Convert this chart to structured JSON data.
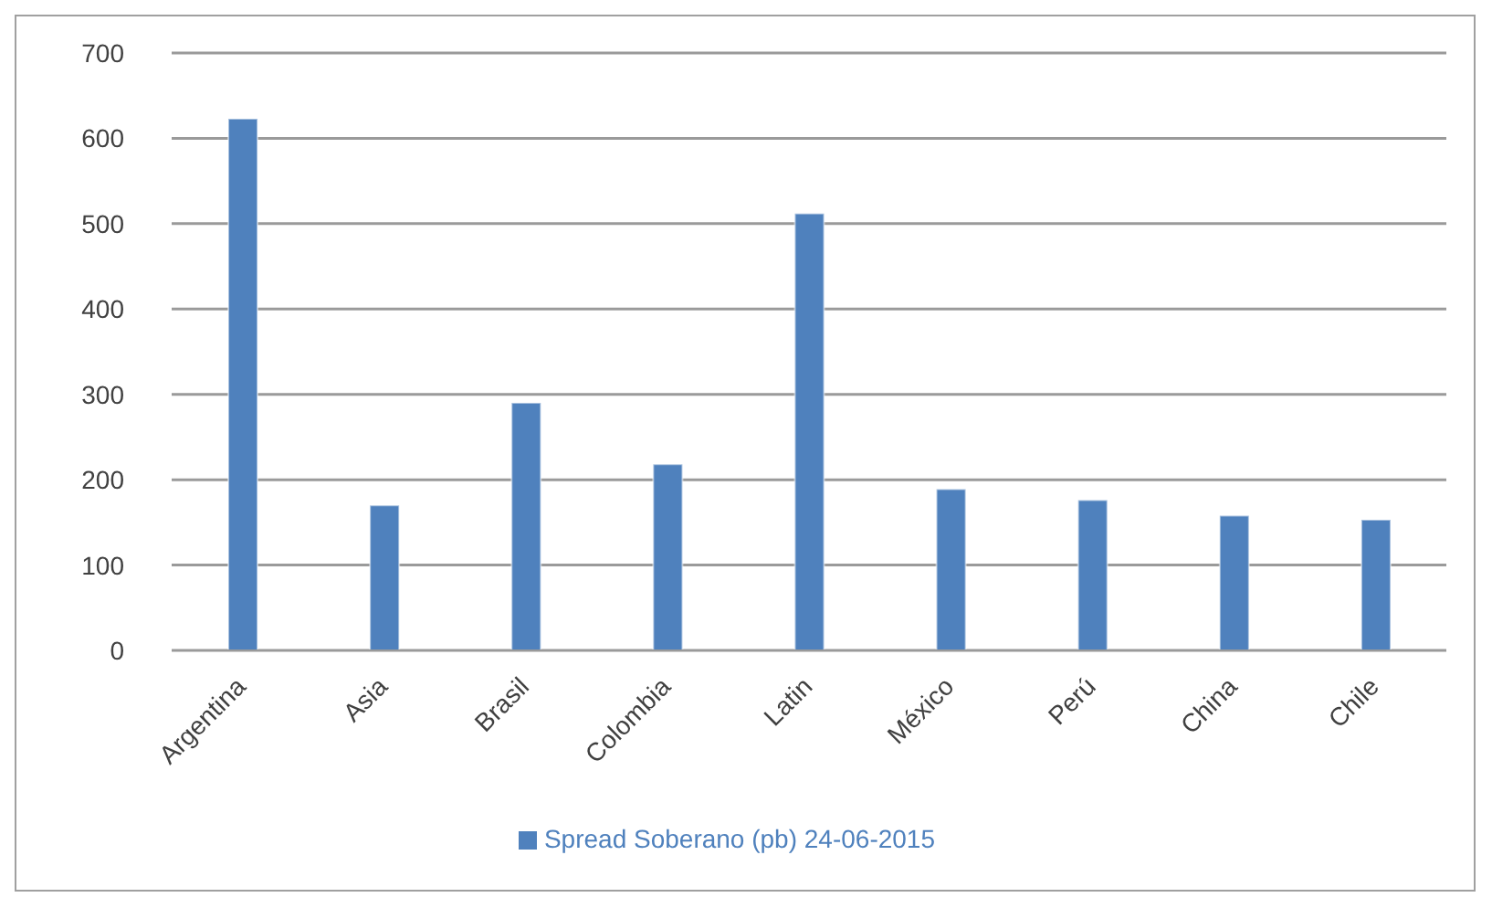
{
  "chart_data": {
    "type": "bar",
    "categories": [
      "Argentina",
      "Asia",
      "Brasil",
      "Colombia",
      "Latin",
      "México",
      "Perú",
      "China",
      "Chile"
    ],
    "series": [
      {
        "name": "Spread Soberano (pb) 24-06-2015",
        "color": "#4f81bd",
        "values": [
          623,
          170,
          290,
          218,
          512,
          189,
          176,
          158,
          153
        ]
      }
    ],
    "ylim": [
      0,
      700
    ],
    "yticks": [
      0,
      100,
      200,
      300,
      400,
      500,
      600,
      700
    ],
    "grid": "y",
    "legend": "bottom"
  }
}
